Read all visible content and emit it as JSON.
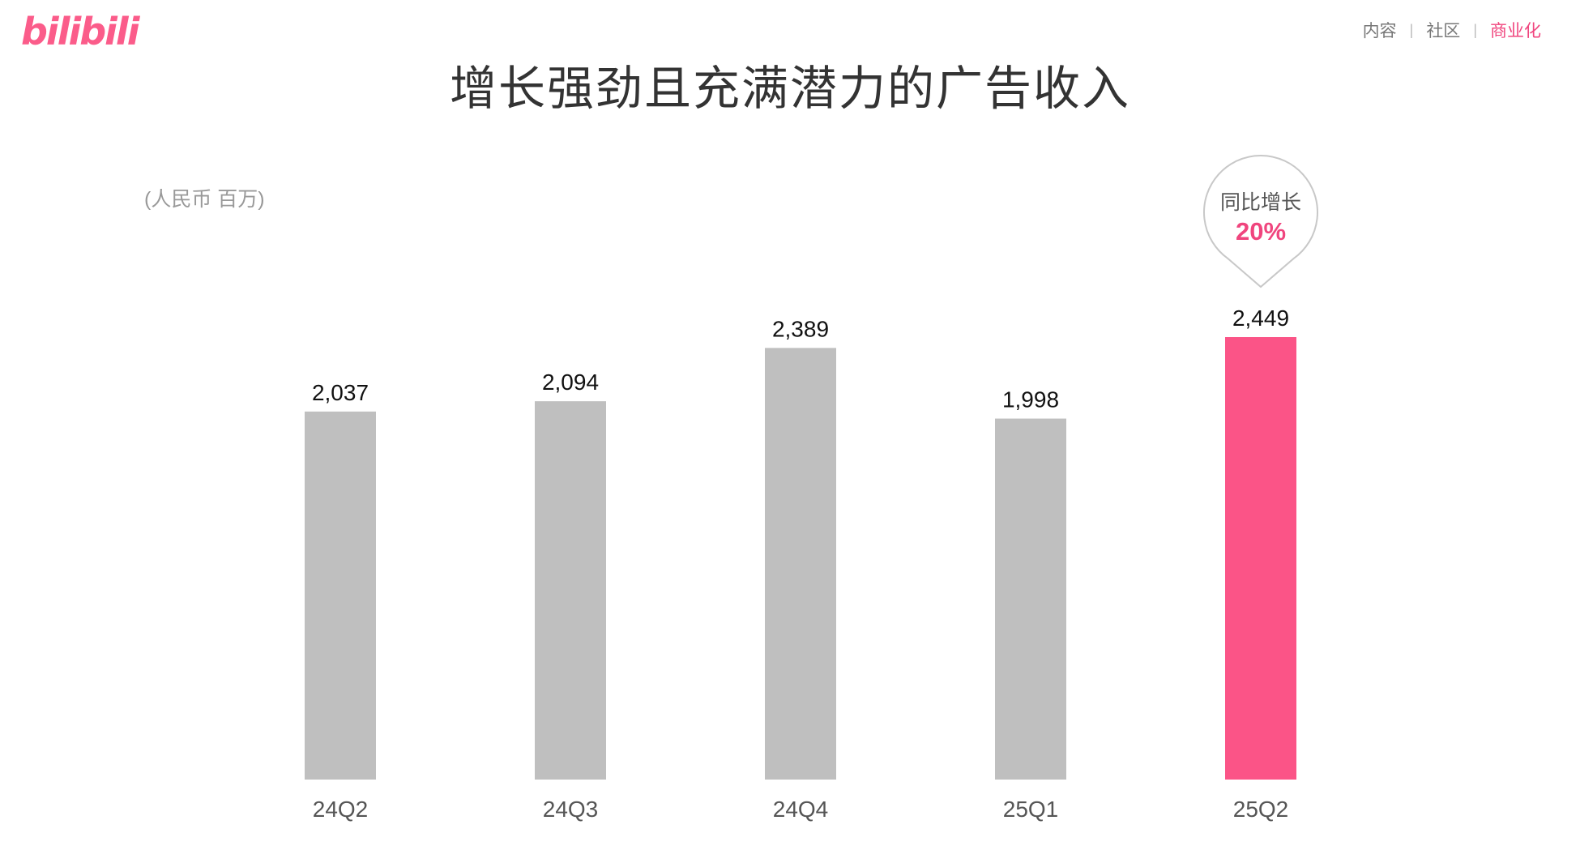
{
  "brand": {
    "logo_text": "bilibili"
  },
  "nav": {
    "items": [
      {
        "label": "内容",
        "active": false
      },
      {
        "label": "社区",
        "active": false
      },
      {
        "label": "商业化",
        "active": true
      }
    ]
  },
  "colors": {
    "accent": "#fb5487",
    "bar_default": "#bfbfbf",
    "text_accent": "#f0457e"
  },
  "chart_data": {
    "type": "bar",
    "title": "增长强劲且充满潜力的广告收入",
    "unit_label": "(人民币 百万)",
    "categories": [
      "24Q2",
      "24Q3",
      "24Q4",
      "25Q1",
      "25Q2"
    ],
    "values": [
      2037,
      2094,
      2389,
      1998,
      2449
    ],
    "value_labels": [
      "2,037",
      "2,094",
      "2,389",
      "1,998",
      "2,449"
    ],
    "highlight_index": 4,
    "ylim": [
      0,
      2449
    ],
    "grid": false,
    "callout": {
      "label": "同比增长",
      "value": "20%"
    }
  }
}
